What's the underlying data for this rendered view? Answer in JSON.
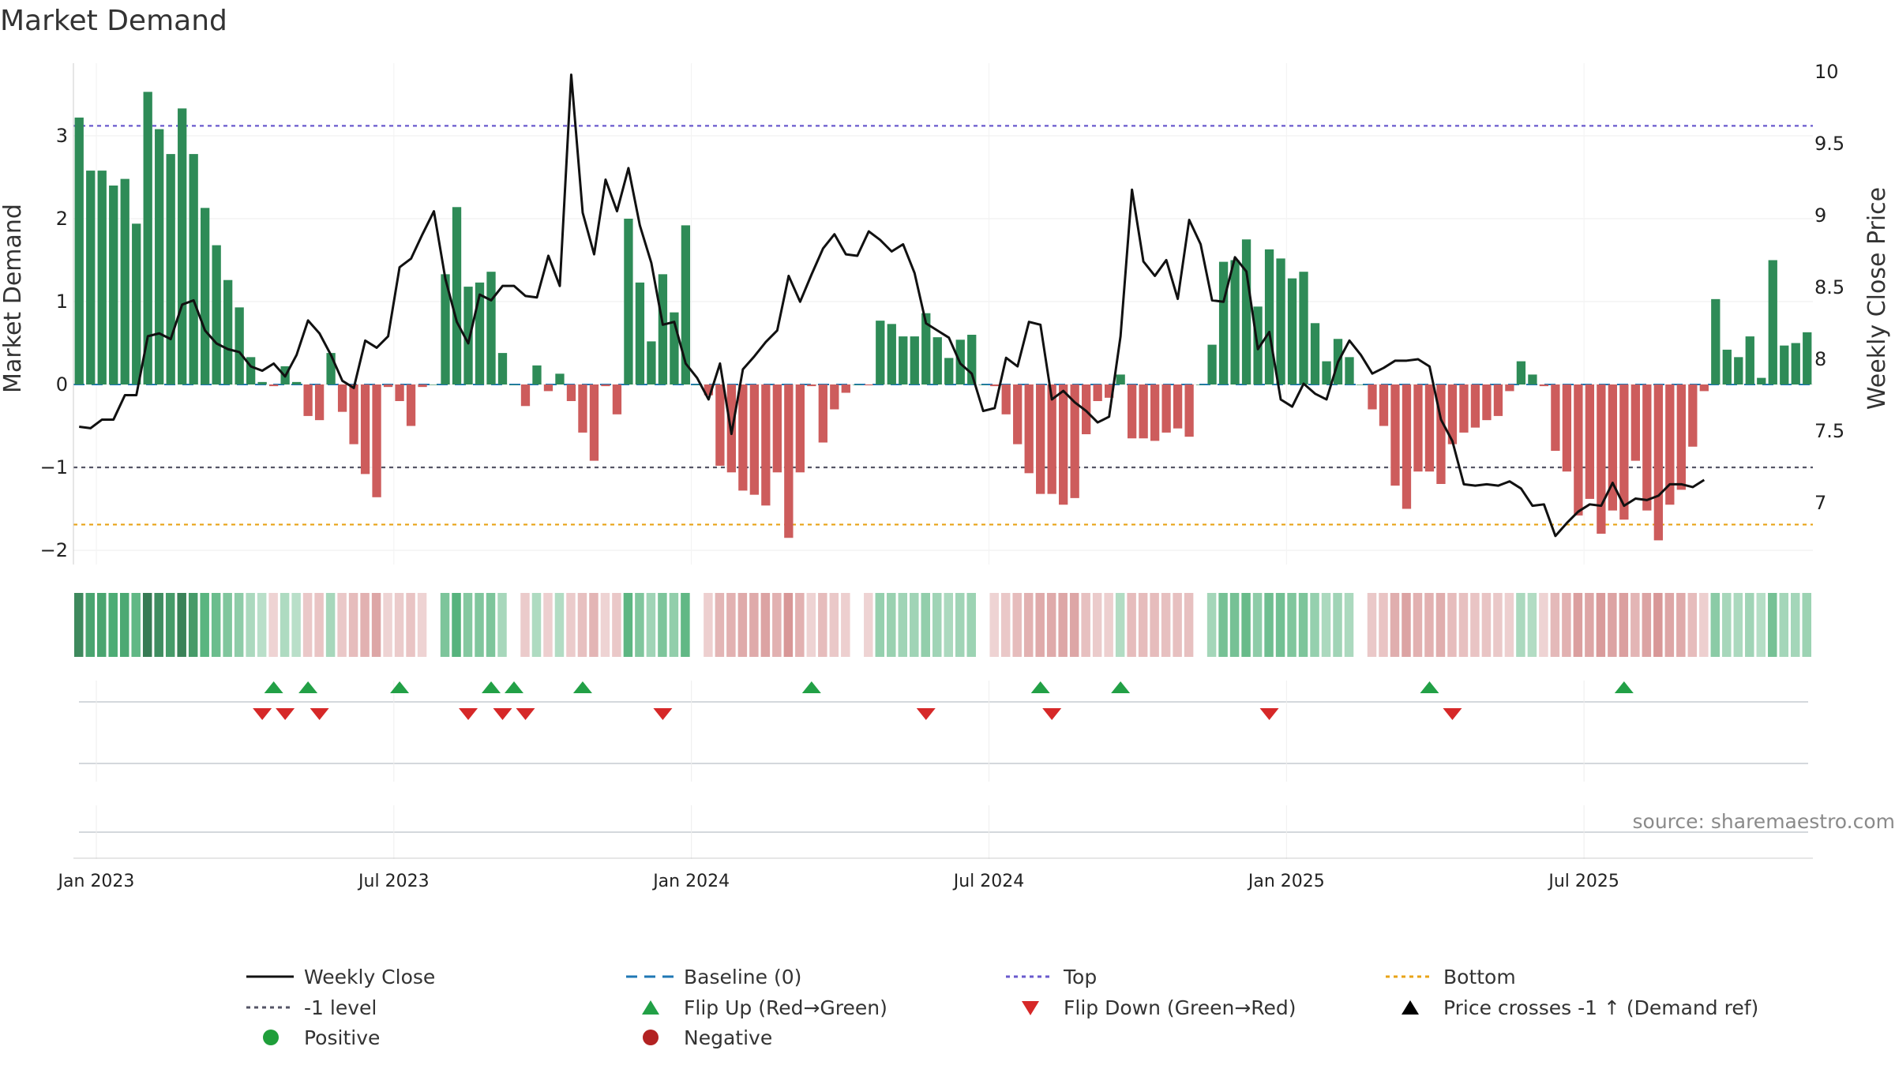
{
  "chart_data": {
    "type": "bar",
    "title": "Market Demand",
    "ylabel": "Market Demand",
    "y2label": "Weekly Close Price",
    "ylim": [
      -2.2,
      3.9
    ],
    "y2lim": [
      6.57,
      10.07
    ],
    "yticks": [
      "3",
      "2",
      "1",
      "0",
      "−1",
      "−2"
    ],
    "y2ticks": [
      "10",
      "9.5",
      "9",
      "8.5",
      "8",
      "7.5",
      "7"
    ],
    "xticks": [
      "Jan 2023",
      "Jul 2023",
      "Jan 2024",
      "Jul 2024",
      "Jan 2025",
      "Jul 2025"
    ],
    "reference_lines": {
      "baseline": 0,
      "top": 3.12,
      "minus_one": -1,
      "bottom": -1.69
    },
    "series": [
      {
        "name": "Market Demand",
        "values": [
          3.22,
          2.58,
          2.58,
          2.4,
          2.48,
          1.94,
          3.53,
          3.08,
          2.78,
          3.33,
          2.78,
          2.13,
          1.68,
          1.26,
          0.93,
          0.33,
          0.03,
          -0.02,
          0.22,
          0.03,
          -0.38,
          -0.43,
          0.38,
          -0.33,
          -0.72,
          -1.08,
          -1.36,
          -0.03,
          -0.2,
          -0.5,
          -0.03,
          0,
          1.33,
          2.14,
          1.18,
          1.23,
          1.36,
          0.38,
          0,
          -0.26,
          0.23,
          -0.08,
          0.13,
          -0.2,
          -0.58,
          -0.92,
          -0.02,
          -0.36,
          2.0,
          1.23,
          0.52,
          1.33,
          0.87,
          1.92,
          0,
          -0.13,
          -0.98,
          -1.06,
          -1.28,
          -1.33,
          -1.46,
          -1.06,
          -1.85,
          -1.06,
          -0.02,
          -0.7,
          -0.3,
          -0.1,
          0,
          -0.01,
          0.77,
          0.73,
          0.58,
          0.58,
          0.86,
          0.57,
          0.32,
          0.54,
          0.6,
          0,
          -0.02,
          -0.36,
          -0.72,
          -1.07,
          -1.32,
          -1.32,
          -1.45,
          -1.37,
          -0.6,
          -0.2,
          -0.16,
          0.12,
          -0.65,
          -0.65,
          -0.68,
          -0.58,
          -0.53,
          -0.63,
          0,
          0.48,
          1.48,
          1.5,
          1.75,
          0.94,
          1.63,
          1.52,
          1.28,
          1.36,
          0.74,
          0.28,
          0.55,
          0.33,
          0,
          -0.3,
          -0.5,
          -1.22,
          -1.5,
          -1.05,
          -1.05,
          -1.2,
          -0.72,
          -0.58,
          -0.52,
          -0.43,
          -0.38,
          -0.08,
          0.28,
          0.12,
          -0.02,
          -0.8,
          -1.05,
          -1.58,
          -1.38,
          -1.8,
          -1.52,
          -1.63,
          -0.92,
          -1.52,
          -1.88,
          -1.45,
          -1.27,
          -0.75,
          -0.08,
          1.03,
          0.42,
          0.33,
          0.58,
          0.08,
          1.5,
          0.47,
          0.5,
          0.63
        ]
      },
      {
        "name": "Weekly Close",
        "values": [
          7.53,
          7.52,
          7.58,
          7.58,
          7.75,
          7.75,
          8.16,
          8.18,
          8.14,
          8.38,
          8.41,
          8.2,
          8.11,
          8.07,
          8.05,
          7.95,
          7.92,
          7.97,
          7.88,
          8.03,
          8.27,
          8.18,
          8.03,
          7.85,
          7.8,
          8.13,
          8.08,
          8.16,
          8.64,
          8.7,
          8.87,
          9.03,
          8.56,
          8.26,
          8.11,
          8.45,
          8.41,
          8.51,
          8.51,
          8.44,
          8.43,
          8.72,
          8.51,
          9.98,
          9.02,
          8.73,
          9.25,
          9.03,
          9.33,
          8.93,
          8.67,
          8.24,
          8.26,
          7.97,
          7.87,
          7.72,
          7.97,
          7.48,
          7.93,
          8.02,
          8.12,
          8.2,
          8.58,
          8.4,
          8.59,
          8.77,
          8.87,
          8.73,
          8.72,
          8.89,
          8.83,
          8.75,
          8.8,
          8.6,
          8.25,
          8.2,
          8.15,
          7.97,
          7.9,
          7.64,
          7.66,
          8.01,
          7.95,
          8.26,
          8.24,
          7.72,
          7.78,
          7.7,
          7.64,
          7.56,
          7.6,
          8.16,
          9.18,
          8.68,
          8.58,
          8.69,
          8.42,
          8.97,
          8.8,
          8.41,
          8.4,
          8.71,
          8.61,
          8.07,
          8.19,
          7.72,
          7.67,
          7.83,
          7.76,
          7.72,
          7.98,
          8.13,
          8.03,
          7.9,
          7.94,
          7.99,
          7.99,
          8.0,
          7.95,
          7.58,
          7.43,
          7.13,
          7.12,
          7.13,
          7.12,
          7.15,
          7.1,
          6.98,
          6.99,
          6.77,
          6.86,
          6.94,
          6.99,
          6.98,
          7.14,
          6.98,
          7.03,
          7.02,
          7.05,
          7.13,
          7.13,
          7.11,
          7.16
        ]
      }
    ],
    "strip_values": [
      3.22,
      2.58,
      2.58,
      2.4,
      2.48,
      1.94,
      3.53,
      3.08,
      2.78,
      3.33,
      2.78,
      2.13,
      1.68,
      1.26,
      0.93,
      0.33,
      0.03,
      -0.02,
      0.22,
      0.03,
      -0.38,
      -0.43,
      0.38,
      -0.33,
      -0.72,
      -1.08,
      -1.36,
      -0.03,
      -0.2,
      -0.5,
      -0.03,
      0,
      1.33,
      2.14,
      1.18,
      1.23,
      1.36,
      0.38,
      0,
      -0.26,
      0.23,
      -0.08,
      0.13,
      -0.2,
      -0.58,
      -0.92,
      -0.02,
      -0.36,
      2.0,
      1.23,
      0.52,
      1.33,
      0.87,
      1.92,
      0,
      -0.13,
      -0.98,
      -1.06,
      -1.28,
      -1.33,
      -1.46,
      -1.06,
      -1.85,
      -1.06,
      -0.02,
      -0.7,
      -0.3,
      -0.1,
      0,
      -0.01,
      0.77,
      0.73,
      0.58,
      0.58,
      0.86,
      0.57,
      0.32,
      0.54,
      0.6,
      0,
      -0.02,
      -0.36,
      -0.72,
      -1.07,
      -1.32,
      -1.32,
      -1.45,
      -1.37,
      -0.6,
      -0.2,
      -0.16,
      0.12,
      -0.65,
      -0.65,
      -0.68,
      -0.58,
      -0.53,
      -0.63,
      0,
      0.48,
      1.48,
      1.5,
      1.75,
      0.94,
      1.63,
      1.52,
      1.28,
      1.36,
      0.74,
      0.28,
      0.55,
      0.33,
      0,
      -0.3,
      -0.5,
      -1.22,
      -1.5,
      -1.05,
      -1.05,
      -1.2,
      -0.72,
      -0.58,
      -0.52,
      -0.43,
      -0.38,
      -0.08,
      0.28,
      0.12,
      -0.02,
      -0.8,
      -1.05,
      -1.58,
      -1.38,
      -1.8,
      -1.52,
      -1.63,
      -0.92,
      -1.52,
      -1.88,
      -1.45,
      -1.27,
      -0.75,
      -0.08,
      1.03,
      0.42,
      0.33,
      0.58,
      0.08,
      1.5,
      0.47,
      0.5,
      0.63
    ],
    "flip_up_indices": [
      17,
      20,
      28,
      36,
      38,
      44,
      64,
      84,
      91,
      118,
      135
    ],
    "flip_down_indices": [
      16,
      18,
      21,
      34,
      37,
      39,
      51,
      74,
      85,
      104,
      120
    ],
    "x_week_of_tick": [
      2,
      28,
      54,
      80,
      106,
      132
    ],
    "legend": [
      {
        "label": "Weekly Close",
        "marker": "line"
      },
      {
        "label": "Baseline (0)",
        "marker": "dash"
      },
      {
        "label": "Top",
        "marker": "dot-line"
      },
      {
        "label": "Bottom",
        "marker": "dot-line"
      },
      {
        "label": "-1 level",
        "marker": "dot-line"
      },
      {
        "label": "Flip Up (Red→Green)",
        "marker": "triangle-up"
      },
      {
        "label": "Flip Down (Green→Red)",
        "marker": "triangle-down"
      },
      {
        "label": "Price crosses -1 ↑ (Demand ref)",
        "marker": "triangle-up"
      },
      {
        "label": "Positive",
        "marker": "circle"
      },
      {
        "label": "Negative",
        "marker": "circle"
      }
    ],
    "source": "source: sharemaestro.com"
  },
  "colors": {
    "positive": "#2e8b57",
    "negative": "#cd5c5c",
    "close_line": "#111111",
    "baseline": "#1f77b4",
    "top": "#6a5acd",
    "minus_one": "#555566",
    "bottom": "#e8a317",
    "flip_up": "#22a046",
    "flip_down": "#d62828",
    "cross": "#000000",
    "positive_dot": "#1f9e3a",
    "negative_dot": "#b22222",
    "legend_cross": "#000000"
  }
}
